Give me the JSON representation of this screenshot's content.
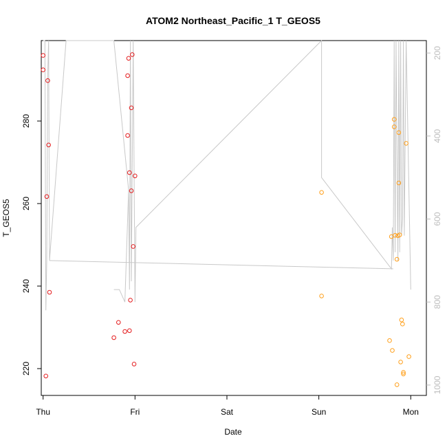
{
  "chart_data": {
    "type": "scatter",
    "title": "ATOM2 Northeast_Pacific_1 T_GEOS5",
    "xlabel": "Date",
    "ylabel": "T_GEOS5",
    "x_ticks": [
      "Thu",
      "Fri",
      "Sat",
      "Sun",
      "Mon"
    ],
    "xlim": [
      -0.02,
      4.17
    ],
    "ylim": [
      213.5,
      299.5
    ],
    "y_ticks": [
      220,
      240,
      260,
      280
    ],
    "y2_ticks": [
      200,
      400,
      600,
      800,
      1000
    ],
    "y2lim": [
      1025,
      170
    ],
    "y2_reversed": true,
    "grid": false,
    "series": [
      {
        "color": "#e41a1c",
        "points": [
          [
            0.0,
            295.9
          ],
          [
            0.0,
            292.4
          ],
          [
            0.03,
            218.2
          ],
          [
            0.04,
            261.7
          ],
          [
            0.05,
            289.8
          ],
          [
            0.06,
            274.2
          ],
          [
            0.07,
            238.5
          ],
          [
            0.77,
            227.5
          ],
          [
            0.82,
            231.2
          ],
          [
            0.89,
            229.0
          ],
          [
            0.92,
            276.5
          ],
          [
            0.92,
            291.0
          ],
          [
            0.93,
            295.2
          ],
          [
            0.94,
            267.5
          ],
          [
            0.94,
            229.2
          ],
          [
            0.95,
            236.6
          ],
          [
            0.96,
            263.1
          ],
          [
            0.96,
            283.2
          ],
          [
            0.97,
            296.1
          ],
          [
            0.98,
            249.6
          ],
          [
            0.99,
            221.1
          ],
          [
            1.0,
            266.7
          ]
        ]
      },
      {
        "color": "#ff9f1a",
        "points": [
          [
            3.03,
            262.7
          ],
          [
            3.03,
            237.6
          ],
          [
            3.77,
            226.8
          ],
          [
            3.79,
            252.0
          ],
          [
            3.8,
            224.4
          ],
          [
            3.82,
            280.4
          ],
          [
            3.82,
            278.6
          ],
          [
            3.83,
            252.3
          ],
          [
            3.85,
            216.1
          ],
          [
            3.85,
            246.5
          ],
          [
            3.86,
            252.2
          ],
          [
            3.87,
            265.0
          ],
          [
            3.87,
            277.2
          ],
          [
            3.88,
            252.4
          ],
          [
            3.89,
            221.6
          ],
          [
            3.9,
            231.8
          ],
          [
            3.91,
            230.8
          ],
          [
            3.92,
            218.7
          ],
          [
            3.92,
            219.1
          ],
          [
            3.95,
            274.6
          ],
          [
            3.98,
            222.9
          ]
        ]
      }
    ],
    "pressure_line": {
      "color": "#c8c8c8",
      "points": [
        [
          0.0,
          170
        ],
        [
          0.02,
          170
        ],
        [
          0.03,
          820
        ],
        [
          0.04,
          700
        ],
        [
          0.05,
          250
        ],
        [
          0.06,
          170
        ],
        [
          0.07,
          700
        ],
        [
          0.25,
          170
        ],
        [
          0.77,
          170
        ],
        [
          0.93,
          530
        ],
        [
          0.94,
          770
        ],
        [
          0.95,
          170
        ],
        [
          0.96,
          750
        ],
        [
          0.98,
          170
        ],
        [
          1.0,
          800
        ],
        [
          1.01,
          620
        ],
        [
          3.03,
          170
        ],
        [
          3.03,
          500
        ],
        [
          3.79,
          720
        ],
        [
          3.8,
          620
        ],
        [
          3.81,
          700
        ],
        [
          3.82,
          170
        ],
        [
          3.83,
          680
        ],
        [
          3.84,
          170
        ],
        [
          3.86,
          700
        ],
        [
          3.87,
          170
        ],
        [
          3.88,
          680
        ],
        [
          3.89,
          170
        ],
        [
          3.9,
          640
        ],
        [
          3.91,
          600
        ],
        [
          3.92,
          170
        ],
        [
          3.93,
          640
        ],
        [
          3.95,
          170
        ],
        [
          4.0,
          770
        ]
      ]
    },
    "pressure_line_b": {
      "color": "#c8c8c8",
      "points": [
        [
          0.07,
          700
        ],
        [
          3.81,
          720
        ]
      ]
    },
    "pressure_line_c": {
      "color": "#c8c8c8",
      "points": [
        [
          0.77,
          770
        ],
        [
          0.83,
          770
        ],
        [
          0.89,
          800
        ],
        [
          0.93,
          530
        ]
      ]
    }
  }
}
